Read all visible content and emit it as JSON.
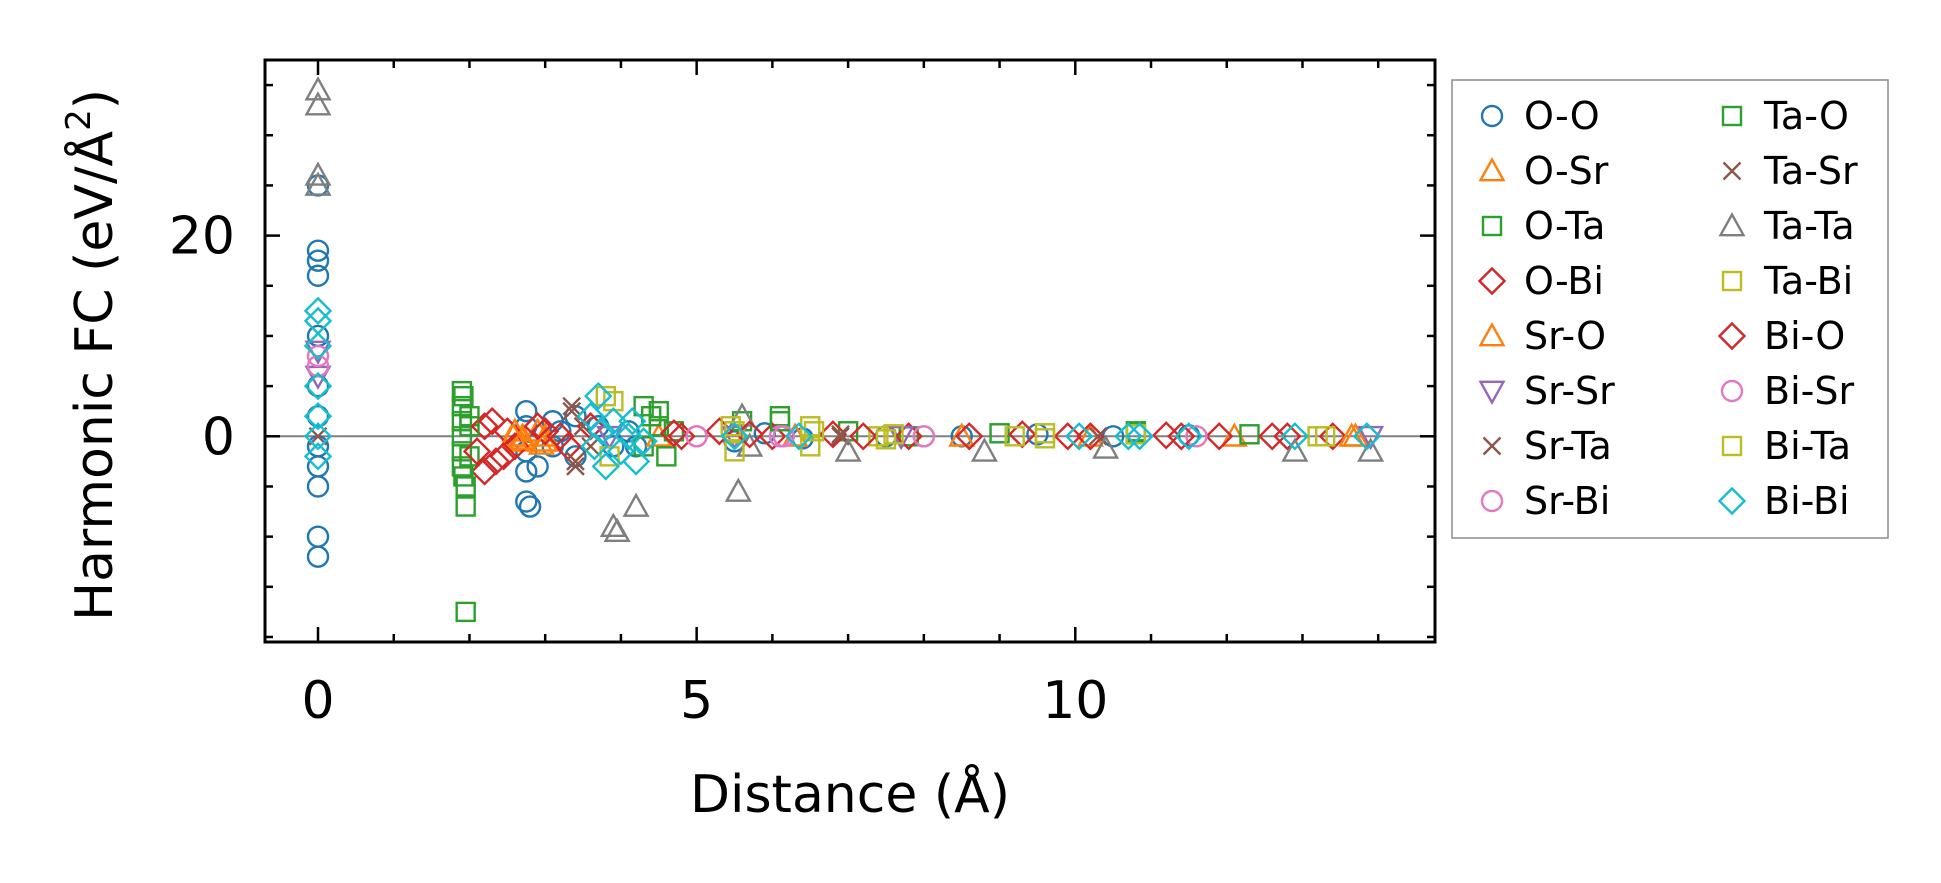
{
  "chart_data": {
    "type": "scatter",
    "xlabel": "Distance (Å)",
    "ylabel": "Harmonic FC (eV/Å²)",
    "ylabel_main": "Harmonic FC (eV/Å",
    "ylabel_sup": "2",
    "ylabel_tail": ")",
    "xlim": [
      -0.7,
      14.75
    ],
    "ylim": [
      -20.5,
      37.5
    ],
    "xticks": [
      0,
      5,
      10
    ],
    "xtick_labels": [
      "0",
      "5",
      "10"
    ],
    "yticks": [
      0,
      20
    ],
    "ytick_labels": [
      "0",
      "20"
    ],
    "x_minor_step": 1,
    "y_minor_step": 5,
    "zero_line": true,
    "legend_position": "outside-right",
    "legend_columns": 2,
    "series": [
      {
        "name": "O-O",
        "marker": "circle",
        "color": "#1f77b4",
        "points": [
          [
            0,
            25
          ],
          [
            0,
            18.5
          ],
          [
            0,
            17.5
          ],
          [
            0,
            16
          ],
          [
            0,
            10
          ],
          [
            0,
            5
          ],
          [
            0,
            2
          ],
          [
            0,
            -1
          ],
          [
            0,
            -3
          ],
          [
            0,
            -5
          ],
          [
            0,
            -10
          ],
          [
            0,
            -12
          ],
          [
            2.75,
            2.5
          ],
          [
            2.75,
            1
          ],
          [
            2.75,
            -1.5
          ],
          [
            2.75,
            -3.5
          ],
          [
            2.75,
            -6.5
          ],
          [
            2.8,
            -7
          ],
          [
            2.9,
            -3
          ],
          [
            3.1,
            1.5
          ],
          [
            3.1,
            -1
          ],
          [
            3.2,
            0.5
          ],
          [
            3.4,
            2
          ],
          [
            3.4,
            -2
          ],
          [
            3.7,
            1
          ],
          [
            3.9,
            -1
          ],
          [
            4.1,
            0.5
          ],
          [
            4.2,
            -1
          ],
          [
            5.5,
            -0.5
          ],
          [
            5.9,
            0.3
          ],
          [
            6.4,
            -0.2
          ],
          [
            7.5,
            0
          ],
          [
            8.5,
            0
          ],
          [
            9.5,
            0.2
          ],
          [
            10.5,
            0
          ],
          [
            11.5,
            0.1
          ]
        ]
      },
      {
        "name": "O-Sr",
        "marker": "triangle-up",
        "color": "#ff7f0e",
        "points": [
          [
            2.6,
            0.5
          ],
          [
            2.65,
            -0.5
          ],
          [
            2.7,
            0
          ],
          [
            2.9,
            0.5
          ],
          [
            2.95,
            -0.8
          ],
          [
            3.0,
            0
          ],
          [
            4.5,
            0
          ],
          [
            6.3,
            0
          ],
          [
            8.5,
            0
          ],
          [
            10.2,
            0
          ],
          [
            12.1,
            0
          ],
          [
            13.7,
            0
          ]
        ]
      },
      {
        "name": "O-Ta",
        "marker": "square",
        "color": "#2ca02c",
        "points": [
          [
            1.9,
            4.5
          ],
          [
            1.9,
            3
          ],
          [
            1.9,
            1.5
          ],
          [
            1.9,
            0
          ],
          [
            1.9,
            -1.5
          ],
          [
            1.9,
            -3
          ],
          [
            1.95,
            -5
          ],
          [
            1.95,
            -7
          ],
          [
            1.95,
            -17.5
          ],
          [
            2.0,
            2
          ],
          [
            2.0,
            -2
          ],
          [
            4.3,
            3
          ],
          [
            4.4,
            2
          ],
          [
            4.5,
            1
          ],
          [
            4.6,
            -2
          ],
          [
            4.7,
            0.5
          ],
          [
            5.6,
            1.5
          ],
          [
            6.1,
            2
          ],
          [
            7.0,
            0.5
          ],
          [
            7.8,
            0
          ],
          [
            9.0,
            0.3
          ],
          [
            10.8,
            0.5
          ],
          [
            12.3,
            0.2
          ]
        ]
      },
      {
        "name": "O-Bi",
        "marker": "diamond",
        "color": "#d62728",
        "points": [
          [
            2.1,
            -1.5
          ],
          [
            2.2,
            -3.5
          ],
          [
            2.2,
            1
          ],
          [
            2.35,
            -2.5
          ],
          [
            2.5,
            0.5
          ],
          [
            2.6,
            -1
          ],
          [
            3.0,
            0.5
          ],
          [
            3.3,
            -1
          ],
          [
            3.6,
            1
          ],
          [
            4.7,
            0.3
          ],
          [
            5.3,
            0.5
          ],
          [
            6.0,
            0
          ],
          [
            6.8,
            0.2
          ],
          [
            7.8,
            0
          ],
          [
            8.6,
            0
          ],
          [
            9.3,
            0.2
          ],
          [
            10.2,
            0
          ],
          [
            11.2,
            0.1
          ],
          [
            11.9,
            0
          ],
          [
            12.8,
            0
          ],
          [
            13.4,
            0
          ]
        ]
      },
      {
        "name": "Sr-O",
        "marker": "triangle-up",
        "color": "#ff7f0e",
        "points": [
          [
            2.58,
            0
          ],
          [
            2.7,
            -0.3
          ],
          [
            3.0,
            -0.5
          ],
          [
            13.65,
            0
          ]
        ]
      },
      {
        "name": "Sr-Sr",
        "marker": "triangle-down",
        "color": "#9467bd",
        "points": [
          [
            0,
            8.5
          ],
          [
            0,
            6
          ],
          [
            3.85,
            0
          ],
          [
            5.5,
            0
          ],
          [
            7.7,
            0
          ],
          [
            13.9,
            0
          ]
        ]
      },
      {
        "name": "Sr-Ta",
        "marker": "x",
        "color": "#8c564b",
        "points": [
          [
            0,
            0
          ],
          [
            3.35,
            3
          ],
          [
            3.4,
            -3
          ],
          [
            3.5,
            1
          ],
          [
            3.6,
            -1
          ],
          [
            6.9,
            0
          ],
          [
            10.3,
            0
          ]
        ]
      },
      {
        "name": "Sr-Bi",
        "marker": "circle",
        "color": "#e377c2",
        "points": [
          [
            0,
            8
          ],
          [
            0,
            7
          ],
          [
            5.0,
            0
          ],
          [
            6.1,
            0
          ],
          [
            8.0,
            0
          ],
          [
            11.6,
            0
          ]
        ]
      },
      {
        "name": "Ta-O",
        "marker": "square",
        "color": "#2ca02c",
        "points": [
          [
            1.92,
            4
          ],
          [
            1.92,
            -4
          ],
          [
            2.0,
            1
          ],
          [
            4.3,
            -1
          ],
          [
            4.5,
            2.5
          ],
          [
            6.1,
            1.5
          ],
          [
            10.8,
            0.3
          ]
        ]
      },
      {
        "name": "Ta-Sr",
        "marker": "x",
        "color": "#8c564b",
        "points": [
          [
            3.35,
            2.5
          ],
          [
            3.4,
            -2.5
          ],
          [
            6.9,
            0.2
          ]
        ]
      },
      {
        "name": "Ta-Ta",
        "marker": "triangle-up",
        "color": "#7f7f7f",
        "points": [
          [
            0,
            34.5
          ],
          [
            0,
            33
          ],
          [
            0,
            26
          ],
          [
            0,
            25
          ],
          [
            3.9,
            -9
          ],
          [
            3.95,
            -9.5
          ],
          [
            4.2,
            -7
          ],
          [
            5.55,
            -5.5
          ],
          [
            5.6,
            2
          ],
          [
            5.7,
            -1
          ],
          [
            7.0,
            -1.5
          ],
          [
            8.8,
            -1.5
          ],
          [
            10.4,
            -1.2
          ],
          [
            12.9,
            -1.5
          ],
          [
            13.9,
            -1.5
          ]
        ]
      },
      {
        "name": "Ta-Bi",
        "marker": "square",
        "color": "#bcbd22",
        "points": [
          [
            3.9,
            3.5
          ],
          [
            3.85,
            -2
          ],
          [
            5.5,
            0.5
          ],
          [
            5.5,
            -1.5
          ],
          [
            6.5,
            1
          ],
          [
            6.5,
            -1
          ],
          [
            7.4,
            0
          ],
          [
            7.6,
            0.2
          ],
          [
            9.2,
            0
          ],
          [
            9.6,
            -0.2
          ],
          [
            10.8,
            0.2
          ],
          [
            13.2,
            0
          ]
        ]
      },
      {
        "name": "Bi-O",
        "marker": "diamond",
        "color": "#d62728",
        "points": [
          [
            2.3,
            1.5
          ],
          [
            2.45,
            -2
          ],
          [
            2.9,
            1
          ],
          [
            3.2,
            0
          ],
          [
            4.8,
            0
          ],
          [
            5.7,
            0.2
          ],
          [
            7.2,
            0
          ],
          [
            9.9,
            0
          ],
          [
            11.4,
            0
          ],
          [
            12.6,
            0
          ]
        ]
      },
      {
        "name": "Bi-Sr",
        "marker": "circle",
        "color": "#e377c2",
        "points": [
          [
            5.0,
            0
          ],
          [
            6.15,
            0
          ],
          [
            8.0,
            0
          ]
        ]
      },
      {
        "name": "Bi-Ta",
        "marker": "square",
        "color": "#bcbd22",
        "points": [
          [
            3.8,
            4
          ],
          [
            5.45,
            1
          ],
          [
            6.55,
            0.5
          ],
          [
            7.5,
            -0.3
          ],
          [
            9.6,
            0.3
          ],
          [
            13.3,
            0
          ]
        ]
      },
      {
        "name": "Bi-Bi",
        "marker": "diamond",
        "color": "#17becf",
        "points": [
          [
            0,
            12.5
          ],
          [
            0,
            11.5
          ],
          [
            0,
            9
          ],
          [
            0,
            5
          ],
          [
            0,
            2
          ],
          [
            0,
            0
          ],
          [
            0,
            -2
          ],
          [
            3.6,
            2
          ],
          [
            3.65,
            -1
          ],
          [
            3.7,
            4
          ],
          [
            3.75,
            0.5
          ],
          [
            3.8,
            -3
          ],
          [
            3.9,
            1.5
          ],
          [
            4.0,
            -1.5
          ],
          [
            4.1,
            0
          ],
          [
            4.15,
            1.5
          ],
          [
            4.2,
            -2.5
          ],
          [
            4.3,
            -0.5
          ],
          [
            5.5,
            0
          ],
          [
            6.35,
            0
          ],
          [
            10.05,
            0
          ],
          [
            10.7,
            0
          ],
          [
            10.85,
            0
          ],
          [
            11.5,
            0
          ],
          [
            12.9,
            0
          ],
          [
            13.85,
            0
          ]
        ]
      }
    ]
  }
}
